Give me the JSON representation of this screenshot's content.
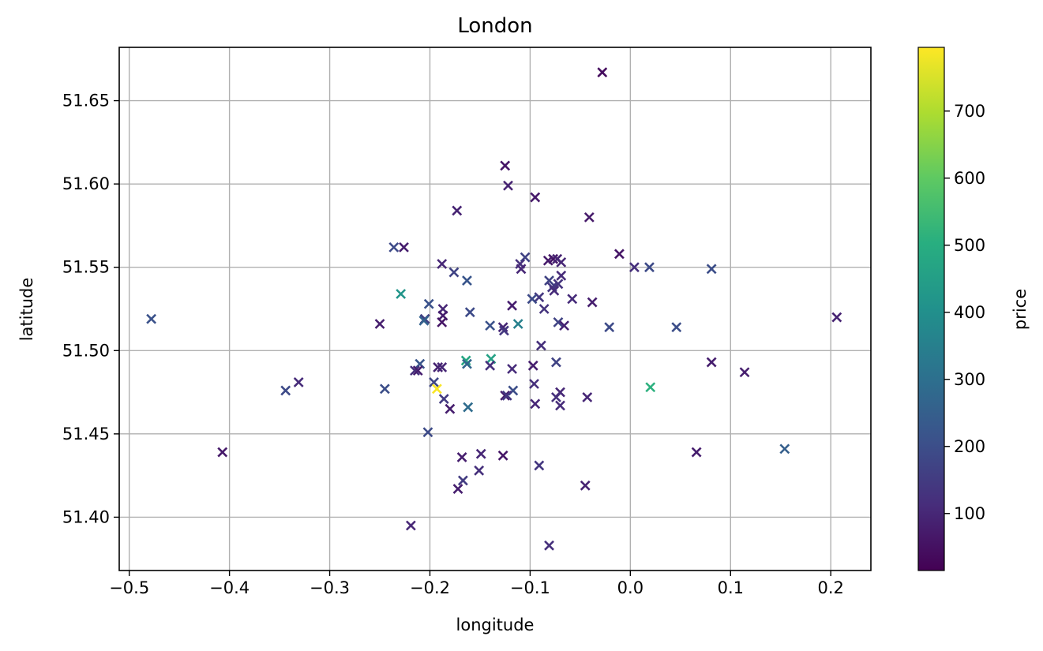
{
  "chart_data": {
    "type": "scatter",
    "title": "London",
    "xlabel": "longitude",
    "ylabel": "latitude",
    "colorbar_label": "price",
    "colormap": "viridis",
    "marker": "x",
    "grid": true,
    "xlim": [
      -0.51,
      0.24
    ],
    "ylim": [
      51.368,
      51.682
    ],
    "clim": [
      15,
      795
    ],
    "xticks": [
      -0.5,
      -0.4,
      -0.3,
      -0.2,
      -0.1,
      0.0,
      0.1,
      0.2
    ],
    "xtick_labels": [
      "−0.5",
      "−0.4",
      "−0.3",
      "−0.2",
      "−0.1",
      "0.0",
      "0.1",
      "0.2"
    ],
    "yticks": [
      51.4,
      51.45,
      51.5,
      51.55,
      51.6,
      51.65
    ],
    "ytick_labels": [
      "51.40",
      "51.45",
      "51.50",
      "51.55",
      "51.60",
      "51.65"
    ],
    "cticks": [
      100,
      200,
      300,
      400,
      500,
      600,
      700
    ],
    "ctick_labels": [
      "100",
      "200",
      "300",
      "400",
      "500",
      "600",
      "700"
    ],
    "points": [
      {
        "x": -0.028,
        "y": 51.667,
        "price": 40
      },
      {
        "x": -0.125,
        "y": 51.611,
        "price": 60
      },
      {
        "x": -0.122,
        "y": 51.599,
        "price": 90
      },
      {
        "x": -0.095,
        "y": 51.592,
        "price": 70
      },
      {
        "x": -0.173,
        "y": 51.584,
        "price": 90
      },
      {
        "x": -0.041,
        "y": 51.58,
        "price": 70
      },
      {
        "x": -0.236,
        "y": 51.562,
        "price": 190
      },
      {
        "x": -0.226,
        "y": 51.562,
        "price": 80
      },
      {
        "x": -0.011,
        "y": 51.558,
        "price": 60
      },
      {
        "x": -0.105,
        "y": 51.556,
        "price": 170
      },
      {
        "x": -0.077,
        "y": 51.555,
        "price": 60
      },
      {
        "x": -0.073,
        "y": 51.555,
        "price": 90
      },
      {
        "x": -0.082,
        "y": 51.554,
        "price": 70
      },
      {
        "x": -0.069,
        "y": 51.553,
        "price": 100
      },
      {
        "x": -0.11,
        "y": 51.552,
        "price": 120
      },
      {
        "x": -0.188,
        "y": 51.552,
        "price": 100
      },
      {
        "x": 0.004,
        "y": 51.55,
        "price": 120
      },
      {
        "x": 0.019,
        "y": 51.55,
        "price": 190
      },
      {
        "x": 0.081,
        "y": 51.549,
        "price": 200
      },
      {
        "x": -0.109,
        "y": 51.549,
        "price": 100
      },
      {
        "x": -0.176,
        "y": 51.547,
        "price": 170
      },
      {
        "x": -0.069,
        "y": 51.545,
        "price": 110
      },
      {
        "x": -0.163,
        "y": 51.542,
        "price": 220
      },
      {
        "x": -0.081,
        "y": 51.542,
        "price": 170
      },
      {
        "x": -0.072,
        "y": 51.54,
        "price": 130
      },
      {
        "x": -0.078,
        "y": 51.538,
        "price": 140
      },
      {
        "x": -0.076,
        "y": 51.536,
        "price": 110
      },
      {
        "x": -0.229,
        "y": 51.534,
        "price": 420
      },
      {
        "x": -0.091,
        "y": 51.532,
        "price": 140
      },
      {
        "x": -0.098,
        "y": 51.531,
        "price": 190
      },
      {
        "x": -0.058,
        "y": 51.531,
        "price": 110
      },
      {
        "x": -0.038,
        "y": 51.529,
        "price": 80
      },
      {
        "x": -0.201,
        "y": 51.528,
        "price": 210
      },
      {
        "x": -0.118,
        "y": 51.527,
        "price": 80
      },
      {
        "x": -0.187,
        "y": 51.525,
        "price": 100
      },
      {
        "x": -0.086,
        "y": 51.525,
        "price": 130
      },
      {
        "x": -0.16,
        "y": 51.523,
        "price": 190
      },
      {
        "x": -0.187,
        "y": 51.521,
        "price": 80
      },
      {
        "x": 0.206,
        "y": 51.52,
        "price": 90
      },
      {
        "x": -0.478,
        "y": 51.519,
        "price": 210
      },
      {
        "x": -0.205,
        "y": 51.519,
        "price": 160
      },
      {
        "x": -0.206,
        "y": 51.518,
        "price": 260
      },
      {
        "x": -0.188,
        "y": 51.517,
        "price": 60
      },
      {
        "x": -0.072,
        "y": 51.517,
        "price": 170
      },
      {
        "x": -0.25,
        "y": 51.516,
        "price": 80
      },
      {
        "x": -0.112,
        "y": 51.516,
        "price": 350
      },
      {
        "x": -0.14,
        "y": 51.515,
        "price": 210
      },
      {
        "x": -0.066,
        "y": 51.515,
        "price": 90
      },
      {
        "x": -0.127,
        "y": 51.514,
        "price": 100
      },
      {
        "x": 0.046,
        "y": 51.514,
        "price": 200
      },
      {
        "x": -0.021,
        "y": 51.514,
        "price": 190
      },
      {
        "x": -0.126,
        "y": 51.512,
        "price": 140
      },
      {
        "x": -0.089,
        "y": 51.503,
        "price": 120
      },
      {
        "x": -0.139,
        "y": 51.495,
        "price": 460
      },
      {
        "x": -0.164,
        "y": 51.494,
        "price": 480
      },
      {
        "x": 0.081,
        "y": 51.493,
        "price": 80
      },
      {
        "x": -0.074,
        "y": 51.493,
        "price": 170
      },
      {
        "x": -0.21,
        "y": 51.492,
        "price": 220
      },
      {
        "x": -0.163,
        "y": 51.492,
        "price": 270
      },
      {
        "x": -0.14,
        "y": 51.491,
        "price": 120
      },
      {
        "x": -0.097,
        "y": 51.491,
        "price": 80
      },
      {
        "x": -0.192,
        "y": 51.49,
        "price": 90
      },
      {
        "x": -0.188,
        "y": 51.49,
        "price": 100
      },
      {
        "x": -0.118,
        "y": 51.489,
        "price": 110
      },
      {
        "x": -0.215,
        "y": 51.488,
        "price": 120
      },
      {
        "x": 0.114,
        "y": 51.487,
        "price": 80
      },
      {
        "x": -0.212,
        "y": 51.488,
        "price": 80
      },
      {
        "x": -0.331,
        "y": 51.481,
        "price": 110
      },
      {
        "x": -0.196,
        "y": 51.481,
        "price": 180
      },
      {
        "x": -0.096,
        "y": 51.48,
        "price": 120
      },
      {
        "x": 0.02,
        "y": 51.478,
        "price": 510
      },
      {
        "x": -0.193,
        "y": 51.477,
        "price": 790
      },
      {
        "x": -0.245,
        "y": 51.477,
        "price": 200
      },
      {
        "x": -0.344,
        "y": 51.476,
        "price": 190
      },
      {
        "x": -0.117,
        "y": 51.476,
        "price": 200
      },
      {
        "x": -0.07,
        "y": 51.475,
        "price": 100
      },
      {
        "x": -0.125,
        "y": 51.473,
        "price": 80
      },
      {
        "x": -0.043,
        "y": 51.472,
        "price": 100
      },
      {
        "x": -0.123,
        "y": 51.473,
        "price": 140
      },
      {
        "x": -0.074,
        "y": 51.472,
        "price": 120
      },
      {
        "x": -0.186,
        "y": 51.471,
        "price": 150
      },
      {
        "x": -0.095,
        "y": 51.468,
        "price": 100
      },
      {
        "x": -0.07,
        "y": 51.467,
        "price": 110
      },
      {
        "x": -0.162,
        "y": 51.466,
        "price": 290
      },
      {
        "x": -0.18,
        "y": 51.465,
        "price": 80
      },
      {
        "x": -0.202,
        "y": 51.451,
        "price": 190
      },
      {
        "x": 0.154,
        "y": 51.441,
        "price": 250
      },
      {
        "x": -0.407,
        "y": 51.439,
        "price": 70
      },
      {
        "x": 0.066,
        "y": 51.439,
        "price": 80
      },
      {
        "x": -0.149,
        "y": 51.438,
        "price": 100
      },
      {
        "x": -0.127,
        "y": 51.437,
        "price": 60
      },
      {
        "x": -0.168,
        "y": 51.436,
        "price": 80
      },
      {
        "x": -0.091,
        "y": 51.431,
        "price": 140
      },
      {
        "x": -0.151,
        "y": 51.428,
        "price": 120
      },
      {
        "x": -0.167,
        "y": 51.422,
        "price": 150
      },
      {
        "x": -0.045,
        "y": 51.419,
        "price": 90
      },
      {
        "x": -0.172,
        "y": 51.417,
        "price": 80
      },
      {
        "x": -0.219,
        "y": 51.395,
        "price": 100
      },
      {
        "x": -0.081,
        "y": 51.383,
        "price": 120
      }
    ]
  }
}
